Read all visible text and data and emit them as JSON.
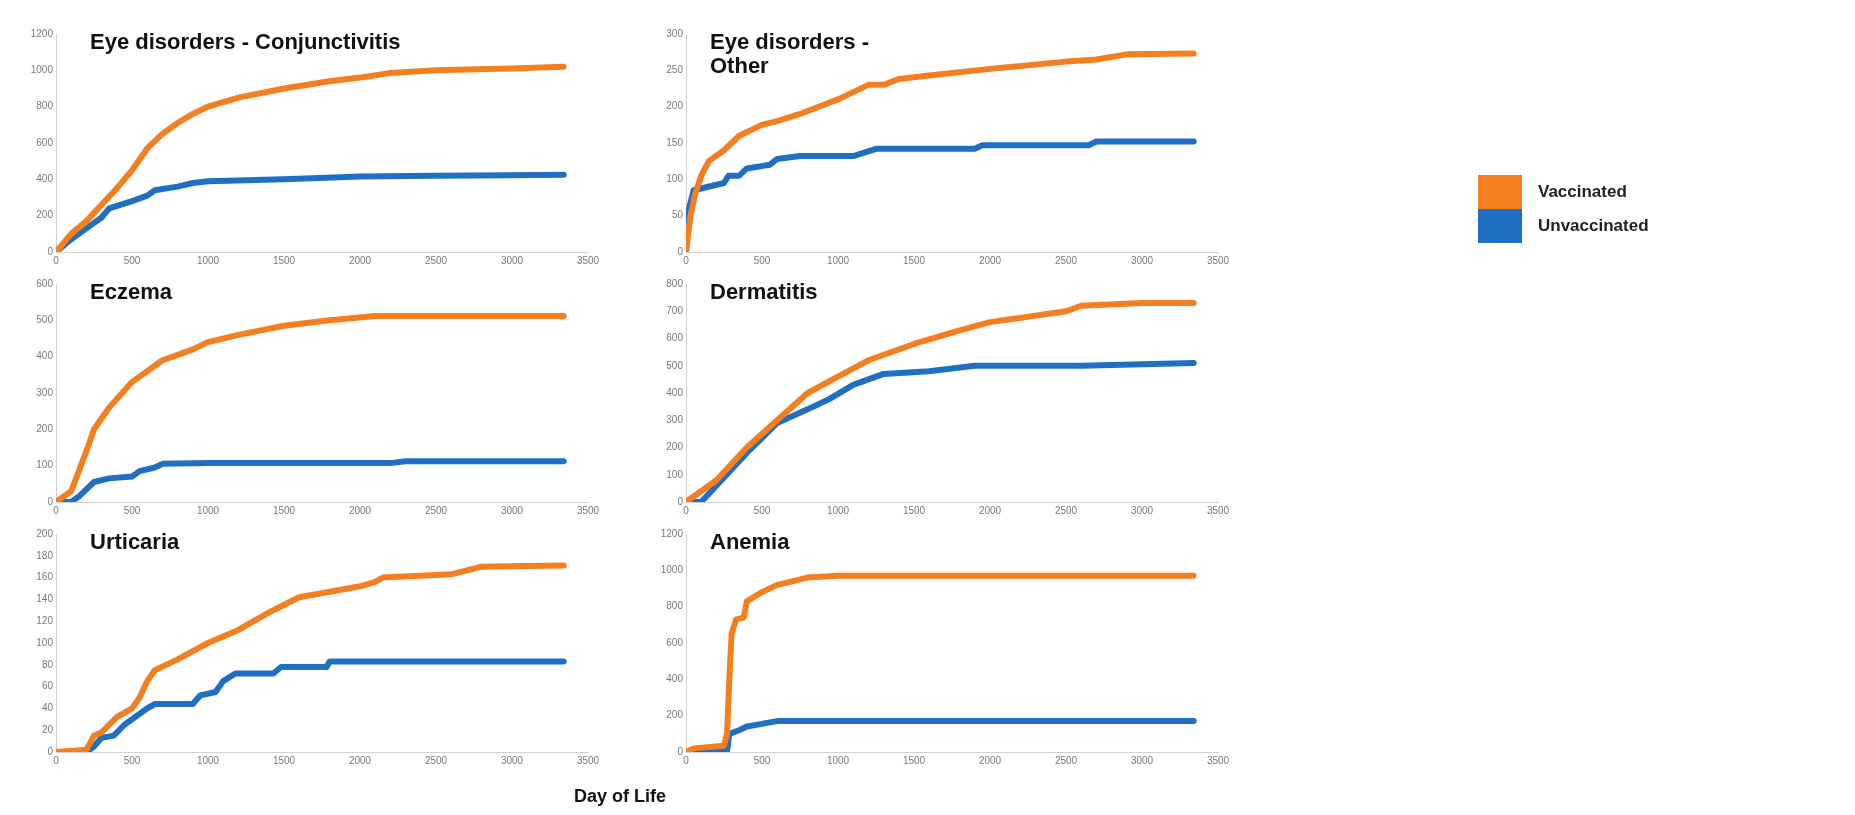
{
  "chart_data": [
    {
      "type": "line",
      "title": "Eye disorders - Conjunctivitis",
      "xlim": [
        0,
        3500
      ],
      "xticks": [
        0,
        500,
        1000,
        1500,
        2000,
        2500,
        3000,
        3500
      ],
      "ylim": [
        0,
        1200
      ],
      "yticks": [
        0,
        200,
        400,
        600,
        800,
        1000,
        1200
      ],
      "grid": false,
      "legend": "right",
      "series": [
        {
          "name": "Vaccinated",
          "color": "#f47f20",
          "x": [
            0,
            100,
            200,
            300,
            400,
            500,
            600,
            700,
            800,
            900,
            1000,
            1200,
            1500,
            1800,
            2000,
            2200,
            2500,
            3000,
            3340
          ],
          "values": [
            0,
            100,
            170,
            260,
            350,
            450,
            570,
            650,
            710,
            760,
            800,
            850,
            900,
            940,
            960,
            985,
            1000,
            1010,
            1020
          ]
        },
        {
          "name": "Unvaccinated",
          "color": "#1f6fc5",
          "x": [
            0,
            100,
            200,
            300,
            350,
            500,
            600,
            650,
            800,
            900,
            1000,
            1500,
            2000,
            2500,
            3340
          ],
          "values": [
            0,
            70,
            130,
            190,
            240,
            280,
            310,
            340,
            360,
            380,
            390,
            400,
            415,
            420,
            425
          ]
        }
      ]
    },
    {
      "type": "line",
      "title": "Eye disorders - Other",
      "xlim": [
        0,
        3500
      ],
      "xticks": [
        0,
        500,
        1000,
        1500,
        2000,
        2500,
        3000,
        3500
      ],
      "ylim": [
        0,
        300
      ],
      "yticks": [
        0,
        50,
        100,
        150,
        200,
        250,
        300
      ],
      "grid": false,
      "series": [
        {
          "color": "#f47f20",
          "x": [
            0,
            30,
            60,
            100,
            150,
            250,
            350,
            500,
            600,
            750,
            1000,
            1100,
            1200,
            1300,
            1400,
            1600,
            2000,
            2500,
            2700,
            2900,
            3340
          ],
          "values": [
            0,
            50,
            80,
            105,
            125,
            140,
            160,
            175,
            180,
            190,
            210,
            220,
            230,
            230,
            238,
            243,
            252,
            262,
            265,
            272,
            273
          ]
        },
        {
          "color": "#1f6fc5",
          "x": [
            0,
            20,
            50,
            250,
            280,
            350,
            400,
            550,
            600,
            750,
            1100,
            1250,
            1900,
            1950,
            2650,
            2700,
            3340
          ],
          "values": [
            0,
            60,
            85,
            95,
            105,
            105,
            115,
            120,
            128,
            132,
            132,
            142,
            142,
            147,
            147,
            152,
            152
          ]
        }
      ]
    },
    {
      "type": "line",
      "title": "Eczema",
      "xlim": [
        0,
        3500
      ],
      "xticks": [
        0,
        500,
        1000,
        1500,
        2000,
        2500,
        3000,
        3500
      ],
      "ylim": [
        0,
        600
      ],
      "yticks": [
        0,
        100,
        200,
        300,
        400,
        500,
        600
      ],
      "grid": false,
      "series": [
        {
          "color": "#f47f20",
          "x": [
            0,
            100,
            200,
            250,
            350,
            500,
            600,
            700,
            900,
            1000,
            1200,
            1500,
            1800,
            2100,
            3340
          ],
          "values": [
            0,
            30,
            140,
            200,
            260,
            330,
            360,
            390,
            420,
            440,
            460,
            485,
            500,
            512,
            512
          ]
        },
        {
          "color": "#1f6fc5",
          "x": [
            0,
            100,
            150,
            250,
            350,
            500,
            550,
            650,
            700,
            1000,
            2200,
            2300,
            3340
          ],
          "values": [
            0,
            0,
            15,
            55,
            65,
            70,
            85,
            95,
            105,
            107,
            107,
            112,
            112
          ]
        }
      ]
    },
    {
      "type": "line",
      "title": "Dermatitis",
      "xlim": [
        0,
        3500
      ],
      "xticks": [
        0,
        500,
        1000,
        1500,
        2000,
        2500,
        3000,
        3500
      ],
      "ylim": [
        0,
        800
      ],
      "yticks": [
        0,
        100,
        200,
        300,
        400,
        500,
        600,
        700,
        800
      ],
      "grid": false,
      "series": [
        {
          "color": "#f47f20",
          "x": [
            0,
            200,
            400,
            600,
            800,
            1000,
            1200,
            1500,
            1800,
            2000,
            2500,
            2600,
            3000,
            3340
          ],
          "values": [
            0,
            80,
            200,
            300,
            400,
            460,
            520,
            580,
            630,
            660,
            700,
            720,
            730,
            730
          ]
        },
        {
          "color": "#1f6fc5",
          "x": [
            0,
            100,
            200,
            400,
            600,
            800,
            950,
            1100,
            1300,
            1600,
            1900,
            2600,
            3340
          ],
          "values": [
            0,
            0,
            60,
            180,
            290,
            340,
            380,
            430,
            470,
            480,
            500,
            500,
            510
          ]
        }
      ]
    },
    {
      "type": "line",
      "title": "Urticaria",
      "xlabel": "Day of Life",
      "xlim": [
        0,
        3500
      ],
      "xticks": [
        0,
        500,
        1000,
        1500,
        2000,
        2500,
        3000,
        3500
      ],
      "ylim": [
        0,
        200
      ],
      "yticks": [
        0,
        20,
        40,
        60,
        80,
        100,
        120,
        140,
        160,
        180,
        200
      ],
      "grid": false,
      "series": [
        {
          "color": "#f47f20",
          "x": [
            0,
            200,
            250,
            300,
            400,
            500,
            550,
            600,
            650,
            800,
            1000,
            1200,
            1400,
            1600,
            1800,
            2000,
            2100,
            2150,
            2600,
            2800,
            3340
          ],
          "values": [
            0,
            2,
            15,
            18,
            32,
            40,
            50,
            65,
            75,
            85,
            100,
            112,
            128,
            142,
            147,
            152,
            156,
            160,
            163,
            170,
            171
          ]
        },
        {
          "color": "#1f6fc5",
          "x": [
            0,
            200,
            250,
            300,
            380,
            450,
            550,
            600,
            650,
            900,
            950,
            1050,
            1100,
            1180,
            1430,
            1480,
            1780,
            1800,
            3340
          ],
          "values": [
            0,
            0,
            5,
            13,
            15,
            25,
            35,
            40,
            44,
            44,
            52,
            55,
            65,
            72,
            72,
            78,
            78,
            83,
            83
          ]
        }
      ]
    },
    {
      "type": "line",
      "title": "Anemia",
      "xlim": [
        0,
        3500
      ],
      "xticks": [
        0,
        500,
        1000,
        1500,
        2000,
        2500,
        3000,
        3500
      ],
      "ylim": [
        0,
        1200
      ],
      "yticks": [
        0,
        200,
        400,
        600,
        800,
        1000,
        1200
      ],
      "grid": false,
      "series": [
        {
          "color": "#f47f20",
          "x": [
            0,
            50,
            250,
            270,
            285,
            300,
            330,
            380,
            400,
            500,
            600,
            800,
            1000,
            3340
          ],
          "values": [
            0,
            20,
            35,
            100,
            400,
            650,
            730,
            740,
            830,
            880,
            920,
            960,
            970,
            970
          ]
        },
        {
          "color": "#1f6fc5",
          "x": [
            0,
            270,
            285,
            350,
            400,
            500,
            600,
            3340
          ],
          "values": [
            0,
            5,
            100,
            120,
            140,
            155,
            170,
            170
          ]
        }
      ]
    }
  ]
}
